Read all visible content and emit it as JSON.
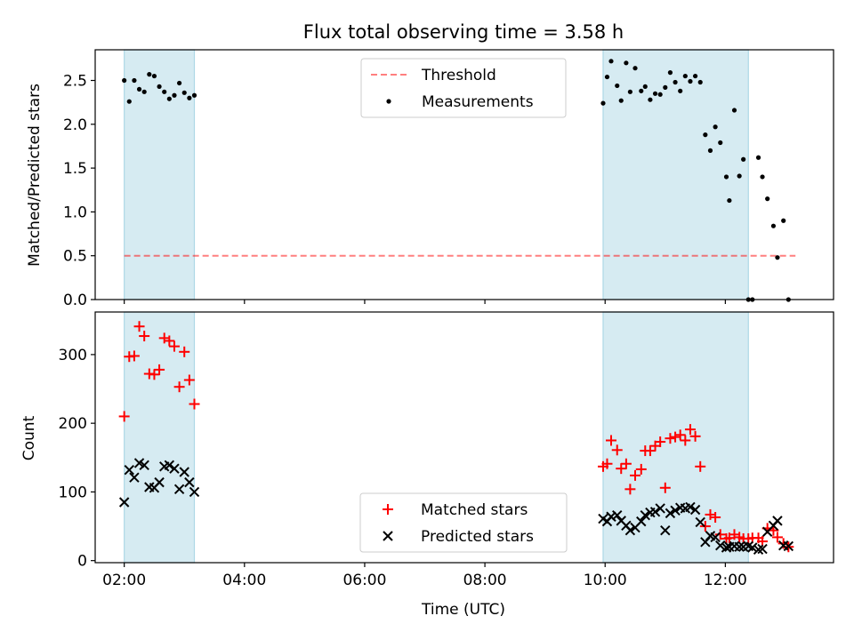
{
  "figure": {
    "title": "Flux total observing time = 3.58 h",
    "xlabel": "Time (UTC)"
  },
  "colors": {
    "span": "#add8e6",
    "threshold": "#ff0000",
    "measurements": "#000000",
    "matched": "#ff0000",
    "predicted": "#000000"
  },
  "chart_data": [
    {
      "type": "scatter",
      "ylabel": "Matched/Predicted stars",
      "xlim": [
        "01:31",
        "13:48"
      ],
      "ylim": [
        0,
        2.85
      ],
      "yticks": [
        0.0,
        0.5,
        1.0,
        1.5,
        2.0,
        2.5
      ],
      "ytick_labels": [
        "0.0",
        "0.5",
        "1.0",
        "1.5",
        "2.0",
        "2.5"
      ],
      "shaded_spans": [
        [
          "02:00",
          "03:10"
        ],
        [
          "09:58",
          "12:23"
        ]
      ],
      "threshold": {
        "name": "Threshold",
        "value": 0.5,
        "x_range": [
          "02:00",
          "13:10"
        ],
        "style": "dashed"
      },
      "legend": {
        "location": "upper-center",
        "entries": [
          "Threshold",
          "Measurements"
        ]
      },
      "series": [
        {
          "name": "Measurements",
          "marker": "dot",
          "points": [
            [
              "02:00",
              2.5
            ],
            [
              "02:05",
              2.26
            ],
            [
              "02:10",
              2.5
            ],
            [
              "02:15",
              2.4
            ],
            [
              "02:20",
              2.37
            ],
            [
              "02:25",
              2.57
            ],
            [
              "02:30",
              2.55
            ],
            [
              "02:35",
              2.43
            ],
            [
              "02:40",
              2.37
            ],
            [
              "02:45",
              2.29
            ],
            [
              "02:50",
              2.33
            ],
            [
              "02:55",
              2.47
            ],
            [
              "03:00",
              2.36
            ],
            [
              "03:05",
              2.3
            ],
            [
              "03:10",
              2.33
            ],
            [
              "09:58",
              2.24
            ],
            [
              "10:02",
              2.54
            ],
            [
              "10:06",
              2.72
            ],
            [
              "10:12",
              2.44
            ],
            [
              "10:16",
              2.27
            ],
            [
              "10:21",
              2.7
            ],
            [
              "10:25",
              2.37
            ],
            [
              "10:30",
              2.64
            ],
            [
              "10:36",
              2.38
            ],
            [
              "10:40",
              2.43
            ],
            [
              "10:45",
              2.28
            ],
            [
              "10:50",
              2.35
            ],
            [
              "10:55",
              2.34
            ],
            [
              "11:00",
              2.42
            ],
            [
              "11:05",
              2.59
            ],
            [
              "11:10",
              2.48
            ],
            [
              "11:15",
              2.38
            ],
            [
              "11:20",
              2.55
            ],
            [
              "11:25",
              2.49
            ],
            [
              "11:30",
              2.55
            ],
            [
              "11:35",
              2.48
            ],
            [
              "11:40",
              1.88
            ],
            [
              "11:45",
              1.7
            ],
            [
              "11:50",
              1.97
            ],
            [
              "11:55",
              1.79
            ],
            [
              "12:01",
              1.4
            ],
            [
              "12:04",
              1.13
            ],
            [
              "12:09",
              2.16
            ],
            [
              "12:14",
              1.41
            ],
            [
              "12:18",
              1.6
            ],
            [
              "12:23",
              0.0
            ],
            [
              "12:27",
              0.0
            ],
            [
              "12:33",
              1.62
            ],
            [
              "12:37",
              1.4
            ],
            [
              "12:42",
              1.15
            ],
            [
              "12:48",
              0.84
            ],
            [
              "12:52",
              0.48
            ],
            [
              "12:58",
              0.9
            ],
            [
              "13:03",
              0.0
            ]
          ]
        }
      ]
    },
    {
      "type": "scatter",
      "ylabel": "Count",
      "xlabel": "Time (UTC)",
      "xlim": [
        "01:31",
        "13:48"
      ],
      "ylim": [
        -3,
        362
      ],
      "yticks": [
        0,
        100,
        200,
        300
      ],
      "ytick_labels": [
        "0",
        "100",
        "200",
        "300"
      ],
      "xticks": [
        "02:00",
        "04:00",
        "06:00",
        "08:00",
        "10:00",
        "12:00"
      ],
      "xtick_labels": [
        "02:00",
        "04:00",
        "06:00",
        "08:00",
        "10:00",
        "12:00"
      ],
      "shaded_spans": [
        [
          "02:00",
          "03:10"
        ],
        [
          "09:58",
          "12:23"
        ]
      ],
      "legend": {
        "location": "lower-center",
        "entries": [
          "Matched stars",
          "Predicted stars"
        ]
      },
      "series": [
        {
          "name": "Matched stars",
          "marker": "plus",
          "points": [
            [
              "02:00",
              210
            ],
            [
              "02:05",
              297
            ],
            [
              "02:10",
              298
            ],
            [
              "02:15",
              341
            ],
            [
              "02:20",
              327
            ],
            [
              "02:25",
              272
            ],
            [
              "02:30",
              271
            ],
            [
              "02:35",
              278
            ],
            [
              "02:40",
              324
            ],
            [
              "02:45",
              320
            ],
            [
              "02:50",
              312
            ],
            [
              "02:55",
              253
            ],
            [
              "03:00",
              304
            ],
            [
              "03:05",
              263
            ],
            [
              "03:10",
              228
            ],
            [
              "09:58",
              137
            ],
            [
              "10:02",
              141
            ],
            [
              "10:06",
              175
            ],
            [
              "10:12",
              161
            ],
            [
              "10:16",
              134
            ],
            [
              "10:21",
              141
            ],
            [
              "10:25",
              104
            ],
            [
              "10:30",
              124
            ],
            [
              "10:36",
              133
            ],
            [
              "10:40",
              160
            ],
            [
              "10:45",
              160
            ],
            [
              "10:50",
              167
            ],
            [
              "10:55",
              173
            ],
            [
              "11:00",
              106
            ],
            [
              "11:05",
              178
            ],
            [
              "11:10",
              180
            ],
            [
              "11:15",
              183
            ],
            [
              "11:20",
              175
            ],
            [
              "11:25",
              191
            ],
            [
              "11:30",
              181
            ],
            [
              "11:35",
              137
            ],
            [
              "11:40",
              50
            ],
            [
              "11:45",
              67
            ],
            [
              "11:50",
              63
            ],
            [
              "11:55",
              38
            ],
            [
              "12:01",
              32
            ],
            [
              "12:04",
              33
            ],
            [
              "12:09",
              38
            ],
            [
              "12:14",
              34
            ],
            [
              "12:18",
              32
            ],
            [
              "12:23",
              32
            ],
            [
              "12:27",
              33
            ],
            [
              "12:33",
              33
            ],
            [
              "12:37",
              28
            ],
            [
              "12:42",
              47
            ],
            [
              "12:48",
              44
            ],
            [
              "12:52",
              34
            ],
            [
              "12:58",
              25
            ],
            [
              "13:03",
              20
            ]
          ]
        },
        {
          "name": "Predicted stars",
          "marker": "x",
          "points": [
            [
              "02:00",
              85
            ],
            [
              "02:05",
              132
            ],
            [
              "02:10",
              121
            ],
            [
              "02:15",
              142
            ],
            [
              "02:20",
              139
            ],
            [
              "02:25",
              107
            ],
            [
              "02:30",
              106
            ],
            [
              "02:35",
              114
            ],
            [
              "02:40",
              137
            ],
            [
              "02:45",
              139
            ],
            [
              "02:50",
              134
            ],
            [
              "02:55",
              104
            ],
            [
              "03:00",
              129
            ],
            [
              "03:05",
              114
            ],
            [
              "03:10",
              100
            ],
            [
              "09:58",
              61
            ],
            [
              "10:02",
              57
            ],
            [
              "10:06",
              64
            ],
            [
              "10:12",
              66
            ],
            [
              "10:16",
              58
            ],
            [
              "10:21",
              51
            ],
            [
              "10:25",
              44
            ],
            [
              "10:30",
              48
            ],
            [
              "10:36",
              57
            ],
            [
              "10:40",
              66
            ],
            [
              "10:45",
              70
            ],
            [
              "10:50",
              71
            ],
            [
              "10:55",
              76
            ],
            [
              "11:00",
              44
            ],
            [
              "11:05",
              69
            ],
            [
              "11:10",
              73
            ],
            [
              "11:15",
              77
            ],
            [
              "11:20",
              76
            ],
            [
              "11:25",
              78
            ],
            [
              "11:30",
              74
            ],
            [
              "11:35",
              56
            ],
            [
              "11:40",
              27
            ],
            [
              "11:45",
              36
            ],
            [
              "11:50",
              34
            ],
            [
              "11:55",
              22
            ],
            [
              "12:01",
              19
            ],
            [
              "12:04",
              20
            ],
            [
              "12:09",
              21
            ],
            [
              "12:14",
              20
            ],
            [
              "12:18",
              20
            ],
            [
              "12:23",
              21
            ],
            [
              "12:27",
              19
            ],
            [
              "12:33",
              16
            ],
            [
              "12:37",
              17
            ],
            [
              "12:42",
              42
            ],
            [
              "12:48",
              51
            ],
            [
              "12:52",
              58
            ],
            [
              "12:58",
              22
            ],
            [
              "13:03",
              21
            ]
          ]
        }
      ]
    }
  ]
}
